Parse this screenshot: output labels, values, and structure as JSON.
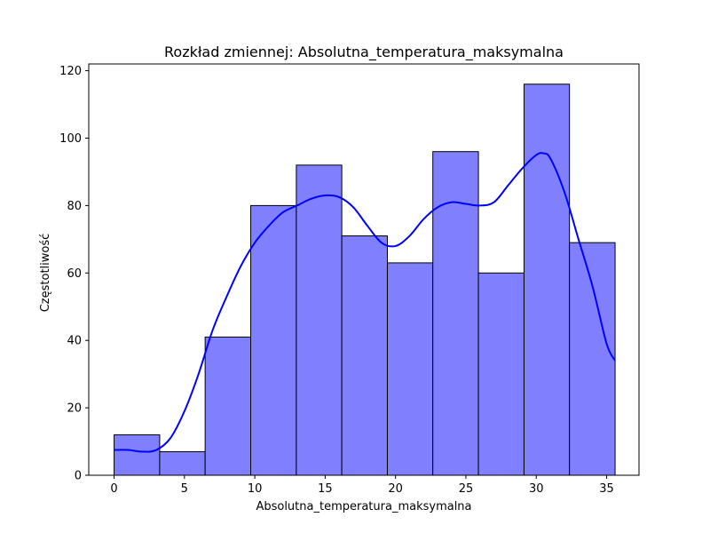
{
  "chart_data": {
    "type": "bar",
    "subtype": "histogram-with-kde",
    "title": "Rozkład zmiennej: Absolutna_temperatura_maksymalna",
    "xlabel": "Absolutna_temperatura_maksymalna",
    "ylabel": "Częstotliwość",
    "xlim": [
      -1.8,
      37.3
    ],
    "ylim": [
      0,
      122
    ],
    "x_ticks": [
      0,
      5,
      10,
      15,
      20,
      25,
      30,
      35
    ],
    "y_ticks": [
      0,
      20,
      40,
      60,
      80,
      100,
      120
    ],
    "bin_edges": [
      0.0,
      3.24,
      6.47,
      9.71,
      12.95,
      16.18,
      19.42,
      22.65,
      25.89,
      29.13,
      32.36,
      35.6
    ],
    "values": [
      12,
      7,
      41,
      80,
      92,
      71,
      63,
      96,
      60,
      116,
      69
    ],
    "kde": {
      "x": [
        0,
        1,
        2,
        3,
        4,
        5,
        6,
        7,
        8,
        9,
        10,
        11,
        12,
        13,
        14,
        15,
        16,
        17,
        18,
        19,
        20,
        21,
        22,
        23,
        24,
        25,
        26,
        27,
        28,
        29,
        30,
        30.5,
        31,
        32,
        33,
        34,
        35,
        35.6
      ],
      "y": [
        7.5,
        7.5,
        7.0,
        7.5,
        11,
        19,
        30,
        43,
        53,
        62,
        69,
        74,
        78,
        80,
        82,
        83,
        82.5,
        79.5,
        74,
        69,
        68,
        71,
        76,
        79.5,
        81,
        80.5,
        80,
        81,
        86,
        91,
        95,
        95.5,
        94,
        84,
        70,
        56,
        39,
        34
      ]
    },
    "grid": false,
    "legend": "none",
    "colors": {
      "bar_fill": "#8080ff",
      "bar_edge": "#000000",
      "kde_line": "#0000ff"
    }
  }
}
